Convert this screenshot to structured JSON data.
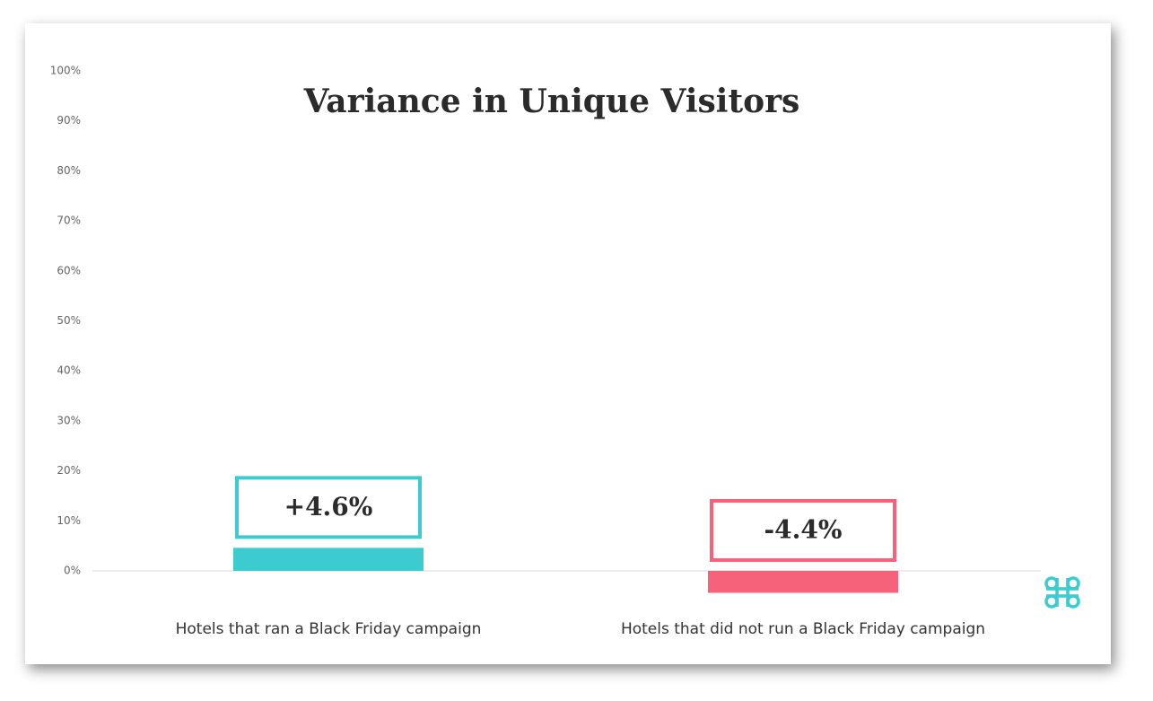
{
  "chart_data": {
    "type": "bar",
    "title": "Variance in Unique Visitors",
    "categories": [
      "Hotels that ran a Black Friday campaign",
      "Hotels that did not run a Black Friday campaign"
    ],
    "values": [
      4.6,
      -4.4
    ],
    "value_labels": [
      "+4.6%",
      "-4.4%"
    ],
    "colors": [
      "#3ccbcf",
      "#f5627a"
    ],
    "ylim": [
      0,
      100
    ],
    "yticks": [
      {
        "value": 0,
        "label": "0%"
      },
      {
        "value": 10,
        "label": "10%"
      },
      {
        "value": 20,
        "label": "20%"
      },
      {
        "value": 30,
        "label": "30%"
      },
      {
        "value": 40,
        "label": "40%"
      },
      {
        "value": 50,
        "label": "50%"
      },
      {
        "value": 60,
        "label": "60%"
      },
      {
        "value": 70,
        "label": "70%"
      },
      {
        "value": 80,
        "label": "80%"
      },
      {
        "value": 90,
        "label": "90%"
      },
      {
        "value": 100,
        "label": "100%"
      }
    ]
  }
}
